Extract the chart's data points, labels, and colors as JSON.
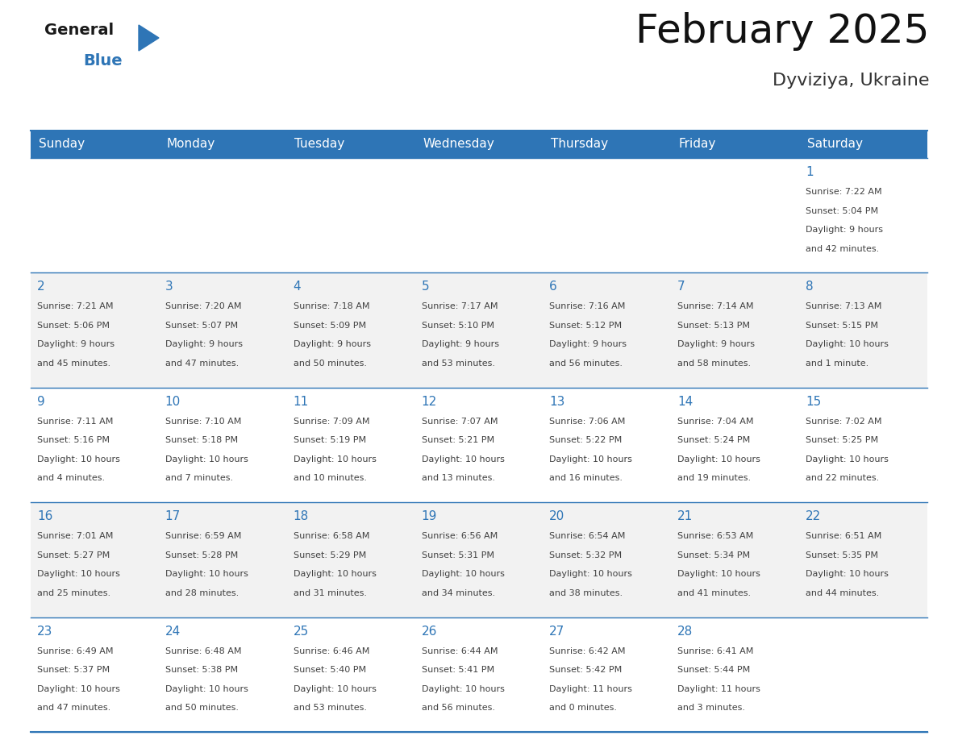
{
  "title": "February 2025",
  "subtitle": "Dyviziya, Ukraine",
  "header_bg_color": "#2e75b6",
  "header_text_color": "#ffffff",
  "day_names": [
    "Sunday",
    "Monday",
    "Tuesday",
    "Wednesday",
    "Thursday",
    "Friday",
    "Saturday"
  ],
  "cell_bg_white": "#ffffff",
  "cell_bg_gray": "#f2f2f2",
  "border_color": "#2e75b6",
  "date_text_color": "#2e75b6",
  "info_text_color": "#404040",
  "calendar": [
    [
      null,
      null,
      null,
      null,
      null,
      null,
      {
        "day": 1,
        "sunrise": "7:22 AM",
        "sunset": "5:04 PM",
        "daylight": "9 hours and 42 minutes."
      }
    ],
    [
      {
        "day": 2,
        "sunrise": "7:21 AM",
        "sunset": "5:06 PM",
        "daylight": "9 hours and 45 minutes."
      },
      {
        "day": 3,
        "sunrise": "7:20 AM",
        "sunset": "5:07 PM",
        "daylight": "9 hours and 47 minutes."
      },
      {
        "day": 4,
        "sunrise": "7:18 AM",
        "sunset": "5:09 PM",
        "daylight": "9 hours and 50 minutes."
      },
      {
        "day": 5,
        "sunrise": "7:17 AM",
        "sunset": "5:10 PM",
        "daylight": "9 hours and 53 minutes."
      },
      {
        "day": 6,
        "sunrise": "7:16 AM",
        "sunset": "5:12 PM",
        "daylight": "9 hours and 56 minutes."
      },
      {
        "day": 7,
        "sunrise": "7:14 AM",
        "sunset": "5:13 PM",
        "daylight": "9 hours and 58 minutes."
      },
      {
        "day": 8,
        "sunrise": "7:13 AM",
        "sunset": "5:15 PM",
        "daylight": "10 hours and 1 minute."
      }
    ],
    [
      {
        "day": 9,
        "sunrise": "7:11 AM",
        "sunset": "5:16 PM",
        "daylight": "10 hours and 4 minutes."
      },
      {
        "day": 10,
        "sunrise": "7:10 AM",
        "sunset": "5:18 PM",
        "daylight": "10 hours and 7 minutes."
      },
      {
        "day": 11,
        "sunrise": "7:09 AM",
        "sunset": "5:19 PM",
        "daylight": "10 hours and 10 minutes."
      },
      {
        "day": 12,
        "sunrise": "7:07 AM",
        "sunset": "5:21 PM",
        "daylight": "10 hours and 13 minutes."
      },
      {
        "day": 13,
        "sunrise": "7:06 AM",
        "sunset": "5:22 PM",
        "daylight": "10 hours and 16 minutes."
      },
      {
        "day": 14,
        "sunrise": "7:04 AM",
        "sunset": "5:24 PM",
        "daylight": "10 hours and 19 minutes."
      },
      {
        "day": 15,
        "sunrise": "7:02 AM",
        "sunset": "5:25 PM",
        "daylight": "10 hours and 22 minutes."
      }
    ],
    [
      {
        "day": 16,
        "sunrise": "7:01 AM",
        "sunset": "5:27 PM",
        "daylight": "10 hours and 25 minutes."
      },
      {
        "day": 17,
        "sunrise": "6:59 AM",
        "sunset": "5:28 PM",
        "daylight": "10 hours and 28 minutes."
      },
      {
        "day": 18,
        "sunrise": "6:58 AM",
        "sunset": "5:29 PM",
        "daylight": "10 hours and 31 minutes."
      },
      {
        "day": 19,
        "sunrise": "6:56 AM",
        "sunset": "5:31 PM",
        "daylight": "10 hours and 34 minutes."
      },
      {
        "day": 20,
        "sunrise": "6:54 AM",
        "sunset": "5:32 PM",
        "daylight": "10 hours and 38 minutes."
      },
      {
        "day": 21,
        "sunrise": "6:53 AM",
        "sunset": "5:34 PM",
        "daylight": "10 hours and 41 minutes."
      },
      {
        "day": 22,
        "sunrise": "6:51 AM",
        "sunset": "5:35 PM",
        "daylight": "10 hours and 44 minutes."
      }
    ],
    [
      {
        "day": 23,
        "sunrise": "6:49 AM",
        "sunset": "5:37 PM",
        "daylight": "10 hours and 47 minutes."
      },
      {
        "day": 24,
        "sunrise": "6:48 AM",
        "sunset": "5:38 PM",
        "daylight": "10 hours and 50 minutes."
      },
      {
        "day": 25,
        "sunrise": "6:46 AM",
        "sunset": "5:40 PM",
        "daylight": "10 hours and 53 minutes."
      },
      {
        "day": 26,
        "sunrise": "6:44 AM",
        "sunset": "5:41 PM",
        "daylight": "10 hours and 56 minutes."
      },
      {
        "day": 27,
        "sunrise": "6:42 AM",
        "sunset": "5:42 PM",
        "daylight": "11 hours and 0 minutes."
      },
      {
        "day": 28,
        "sunrise": "6:41 AM",
        "sunset": "5:44 PM",
        "daylight": "11 hours and 3 minutes."
      },
      null
    ]
  ],
  "logo_general_color": "#1a1a1a",
  "logo_blue_color": "#2e75b6",
  "logo_triangle_color": "#2e75b6",
  "title_fontsize": 36,
  "subtitle_fontsize": 16,
  "dayname_fontsize": 11,
  "date_fontsize": 11,
  "info_fontsize": 8
}
